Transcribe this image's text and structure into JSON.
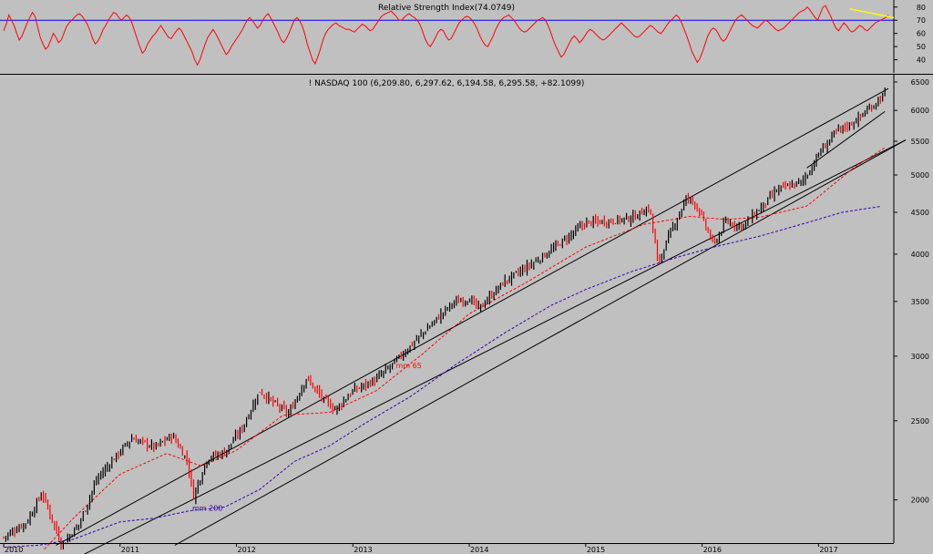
{
  "chart_data": [
    {
      "type": "line",
      "title": "Relative Strength Index(74.0749)",
      "yticks": [
        40,
        50,
        60,
        70,
        80
      ],
      "ylim": [
        30,
        84
      ],
      "reference_level": 70,
      "colors": {
        "line": "#ff0000",
        "reference": "#0000ff",
        "trendline": "#ffff00",
        "background": "#c0c0c0"
      },
      "series": [
        {
          "values": [
            62,
            67,
            74,
            70,
            66,
            60,
            55,
            58,
            63,
            68,
            72,
            76,
            73,
            65,
            57,
            52,
            48,
            50,
            55,
            60,
            57,
            53,
            55,
            60,
            65,
            68,
            70,
            72,
            74,
            75,
            73,
            70,
            67,
            62,
            56,
            52,
            54,
            58,
            63,
            66,
            70,
            73,
            76,
            75,
            72,
            70,
            72,
            74,
            72,
            68,
            62,
            56,
            50,
            45,
            47,
            52,
            55,
            58,
            60,
            63,
            66,
            63,
            60,
            57,
            56,
            59,
            62,
            64,
            62,
            58,
            54,
            50,
            46,
            40,
            36,
            40,
            46,
            52,
            57,
            60,
            63,
            60,
            56,
            52,
            48,
            44,
            46,
            50,
            53,
            56,
            59,
            62,
            66,
            70,
            72,
            70,
            67,
            64,
            66,
            70,
            73,
            75,
            72,
            68,
            64,
            60,
            55,
            53,
            56,
            60,
            65,
            70,
            72,
            70,
            66,
            60,
            52,
            46,
            40,
            37,
            42,
            48,
            55,
            60,
            63,
            65,
            67,
            68,
            66,
            65,
            64,
            63,
            63,
            62,
            61,
            63,
            65,
            67,
            66,
            64,
            62,
            63,
            66,
            69,
            72,
            74,
            75,
            76,
            77,
            75,
            73,
            70,
            70,
            72,
            74,
            75,
            73,
            72,
            70,
            67,
            62,
            56,
            52,
            50,
            53,
            57,
            61,
            63,
            62,
            58,
            55,
            56,
            60,
            64,
            68,
            70,
            72,
            73,
            72,
            70,
            67,
            63,
            58,
            54,
            51,
            50,
            54,
            58,
            63,
            67,
            70,
            72,
            73,
            74,
            72,
            70,
            67,
            64,
            62,
            61,
            62,
            64,
            66,
            68,
            70,
            71,
            72,
            70,
            66,
            61,
            55,
            50,
            46,
            42,
            44,
            48,
            52,
            56,
            58,
            56,
            53,
            55,
            58,
            61,
            63,
            62,
            60,
            58,
            56,
            55,
            56,
            58,
            60,
            62,
            64,
            66,
            68,
            66,
            64,
            62,
            60,
            58,
            57,
            58,
            60,
            62,
            64,
            66,
            65,
            63,
            61,
            60,
            62,
            65,
            68,
            70,
            72,
            74,
            72,
            68,
            63,
            58,
            52,
            46,
            42,
            38,
            41,
            46,
            52,
            58,
            62,
            64,
            63,
            60,
            56,
            54,
            56,
            60,
            64,
            68,
            71,
            73,
            74,
            72,
            70,
            68,
            66,
            65,
            64,
            66,
            68,
            70,
            69,
            67,
            65,
            63,
            62,
            63,
            64,
            66,
            68,
            70,
            72,
            74,
            76,
            77,
            78,
            80,
            78,
            75,
            72,
            70,
            75,
            80,
            81,
            77,
            73,
            68,
            64,
            62,
            65,
            68,
            66,
            63,
            61,
            62,
            64,
            66,
            65,
            63,
            62,
            64,
            66,
            68,
            69,
            70,
            71,
            72,
            74
          ]
        }
      ],
      "trendline": {
        "from": 78.6,
        "to": 72
      }
    },
    {
      "type": "candlestick",
      "title": "! NASDAQ 100 (6,209.80, 6,297.62, 6,194.58, 6,295.58, +82.1099)",
      "x_tick_labels": [
        "2010",
        "2011",
        "2012",
        "2013",
        "2014",
        "2015",
        "2016",
        "2017"
      ],
      "yticks": [
        2000,
        2500,
        3000,
        3500,
        4000,
        4500,
        5000,
        5500,
        6000,
        6500
      ],
      "ylim": [
        1780,
        6600
      ],
      "y_scale": "log",
      "colors": {
        "up": "#000000",
        "down": "#ff0000",
        "ma65": "#ff0000",
        "ma200": "#3300aa",
        "channel": "#000000",
        "background": "#c0c0c0"
      },
      "annotations": [
        {
          "text": "mm 65",
          "x": 2013.37,
          "y": 2900,
          "color": "#ff0000"
        },
        {
          "text": "mm 200",
          "x": 2011.62,
          "y": 1940,
          "color": "#3300aa"
        }
      ],
      "anchors": {
        "x": [
          2010.0,
          2010.2,
          2010.33,
          2010.5,
          2010.65,
          2010.8,
          2010.95,
          2011.1,
          2011.3,
          2011.45,
          2011.58,
          2011.63,
          2011.75,
          2011.9,
          2012.05,
          2012.2,
          2012.3,
          2012.45,
          2012.6,
          2012.75,
          2012.85,
          2013.0,
          2013.2,
          2013.35,
          2013.6,
          2013.85,
          2014.0,
          2014.08,
          2014.3,
          2014.5,
          2014.7,
          2014.85,
          2015.0,
          2015.2,
          2015.4,
          2015.55,
          2015.62,
          2015.75,
          2015.87,
          2015.95,
          2016.1,
          2016.2,
          2016.35,
          2016.5,
          2016.65,
          2016.85,
          2016.92,
          2017.0,
          2017.15,
          2017.3,
          2017.45,
          2017.57
        ],
        "y": [
          1800,
          1880,
          2040,
          1760,
          1870,
          2120,
          2250,
          2380,
          2320,
          2400,
          2230,
          2020,
          2250,
          2290,
          2450,
          2720,
          2640,
          2550,
          2820,
          2650,
          2580,
          2720,
          2810,
          2940,
          3200,
          3480,
          3530,
          3430,
          3700,
          3860,
          4040,
          4200,
          4370,
          4390,
          4430,
          4560,
          3900,
          4320,
          4700,
          4600,
          4100,
          4380,
          4330,
          4550,
          4800,
          4900,
          5050,
          5300,
          5650,
          5800,
          6050,
          6295
        ]
      },
      "ma65_anchors": {
        "x": [
          2010.35,
          2010.6,
          2011.0,
          2011.4,
          2011.7,
          2012.0,
          2012.4,
          2012.8,
          2013.2,
          2013.6,
          2014.0,
          2014.5,
          2015.0,
          2015.5,
          2015.9,
          2016.2,
          2016.5,
          2016.9,
          2017.3,
          2017.57
        ],
        "y": [
          1740,
          1900,
          2150,
          2280,
          2200,
          2300,
          2540,
          2560,
          2720,
          3020,
          3380,
          3700,
          4080,
          4350,
          4450,
          4410,
          4440,
          4580,
          5100,
          5400
        ]
      },
      "ma200_anchors": {
        "x": [
          2010.0,
          2010.3,
          2010.6,
          2011.0,
          2011.3,
          2011.6,
          2011.9,
          2012.2,
          2012.5,
          2012.8,
          2013.1,
          2013.5,
          2013.9,
          2014.3,
          2014.7,
          2015.0,
          2015.4,
          2015.8,
          2016.1,
          2016.5,
          2016.9,
          2017.2,
          2017.55
        ],
        "y": [
          1750,
          1760,
          1790,
          1880,
          1900,
          1940,
          1960,
          2060,
          2230,
          2330,
          2480,
          2680,
          2940,
          3200,
          3460,
          3620,
          3810,
          3970,
          4080,
          4210,
          4370,
          4500,
          4580
        ]
      },
      "channel_lines": [
        {
          "from": [
            2010.45,
            1760
          ],
          "to": [
            2017.6,
            6380
          ]
        },
        {
          "from": [
            2010.6,
            1690
          ],
          "to": [
            2017.75,
            5520
          ]
        },
        {
          "from": [
            2011.47,
            1760
          ],
          "to": [
            2017.75,
            5520
          ]
        },
        {
          "from": [
            2016.9,
            5100
          ],
          "to": [
            2017.57,
            5980
          ]
        }
      ]
    }
  ]
}
